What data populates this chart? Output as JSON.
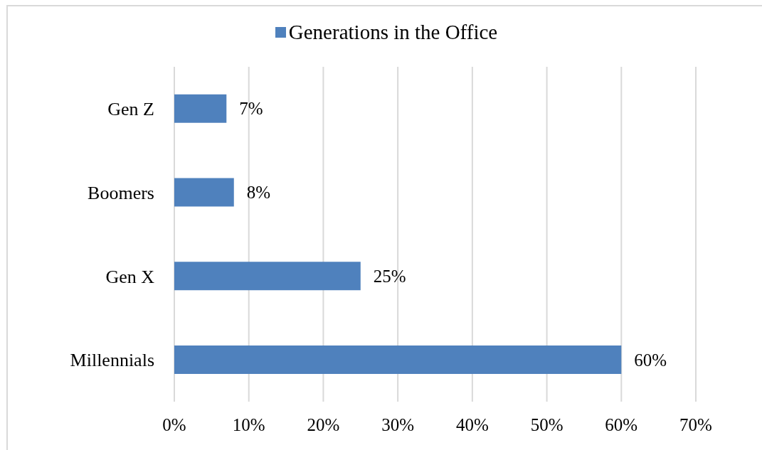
{
  "chart_data": {
    "type": "bar",
    "orientation": "horizontal",
    "categories": [
      "Gen Z",
      "Boomers",
      "Gen X",
      "Millennials"
    ],
    "series": [
      {
        "name": "Generations in the Office",
        "color": "#4f81bd",
        "values": [
          7,
          8,
          25,
          60
        ],
        "value_labels": [
          "7%",
          "8%",
          "25%",
          "60%"
        ]
      }
    ],
    "xlim": [
      0,
      70
    ],
    "xticks": [
      {
        "value": 0,
        "label": "0%"
      },
      {
        "value": 10,
        "label": "10%"
      },
      {
        "value": 20,
        "label": "20%"
      },
      {
        "value": 30,
        "label": "30%"
      },
      {
        "value": 40,
        "label": "40%"
      },
      {
        "value": 50,
        "label": "50%"
      },
      {
        "value": 60,
        "label": "60%"
      },
      {
        "value": 70,
        "label": "70%"
      }
    ],
    "grid": "x",
    "legend": "top"
  }
}
